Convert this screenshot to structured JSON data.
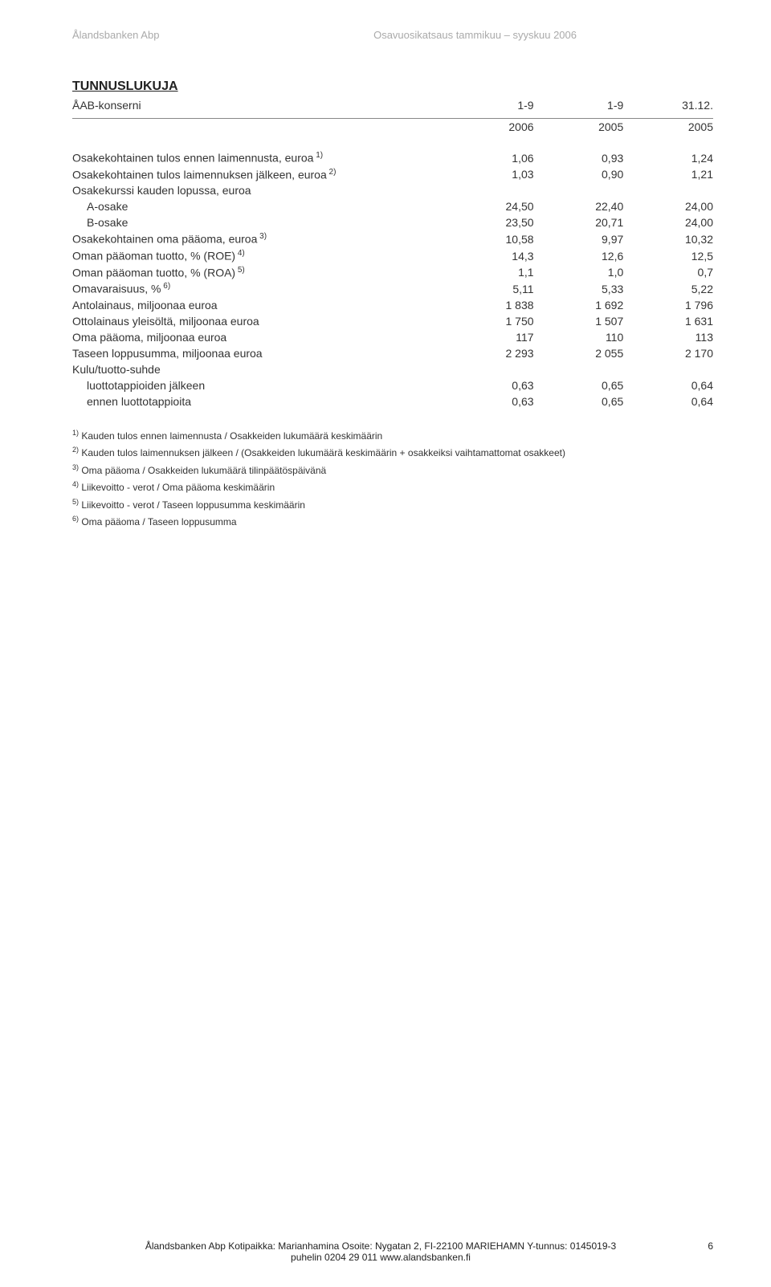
{
  "header": {
    "left": "Ålandsbanken Abp",
    "right": "Osavuosikatsaus tammikuu – syyskuu 2006"
  },
  "title": "TUNNUSLUKUJA",
  "subheader": {
    "label": "ÅAB-konserni",
    "c1": "1-9",
    "c2": "1-9",
    "c3": "31.12."
  },
  "years": {
    "c1": "2006",
    "c2": "2005",
    "c3": "2005"
  },
  "rows": [
    {
      "label": "Osakekohtainen tulos ennen laimennusta, euroa",
      "sup": "1)",
      "c1": "1,06",
      "c2": "0,93",
      "c3": "1,24",
      "indent": false
    },
    {
      "label": "Osakekohtainen tulos laimennuksen jälkeen, euroa",
      "sup": "2)",
      "c1": "1,03",
      "c2": "0,90",
      "c3": "1,21",
      "indent": false
    },
    {
      "label": "Osakekurssi kauden lopussa, euroa",
      "sup": "",
      "c1": "",
      "c2": "",
      "c3": "",
      "indent": false
    },
    {
      "label": "A-osake",
      "sup": "",
      "c1": "24,50",
      "c2": "22,40",
      "c3": "24,00",
      "indent": true
    },
    {
      "label": "B-osake",
      "sup": "",
      "c1": "23,50",
      "c2": "20,71",
      "c3": "24,00",
      "indent": true
    },
    {
      "label": "Osakekohtainen oma pääoma, euroa",
      "sup": "3)",
      "c1": "10,58",
      "c2": "9,97",
      "c3": "10,32",
      "indent": false
    },
    {
      "label": "Oman pääoman tuotto, % (ROE)",
      "sup": "4)",
      "c1": "14,3",
      "c2": "12,6",
      "c3": "12,5",
      "indent": false
    },
    {
      "label": "Oman pääoman tuotto, % (ROA)",
      "sup": "5)",
      "c1": "1,1",
      "c2": "1,0",
      "c3": "0,7",
      "indent": false
    },
    {
      "label": "Omavaraisuus, %",
      "sup": "6)",
      "c1": "5,11",
      "c2": "5,33",
      "c3": "5,22",
      "indent": false
    },
    {
      "label": "Antolainaus, miljoonaa euroa",
      "sup": "",
      "c1": "1 838",
      "c2": "1 692",
      "c3": "1 796",
      "indent": false
    },
    {
      "label": "Ottolainaus yleisöltä, miljoonaa euroa",
      "sup": "",
      "c1": "1 750",
      "c2": "1 507",
      "c3": "1 631",
      "indent": false
    },
    {
      "label": "Oma pääoma, miljoonaa euroa",
      "sup": "",
      "c1": "117",
      "c2": "110",
      "c3": "113",
      "indent": false
    },
    {
      "label": "Taseen loppusumma, miljoonaa euroa",
      "sup": "",
      "c1": "2 293",
      "c2": "2 055",
      "c3": "2 170",
      "indent": false
    },
    {
      "label": "Kulu/tuotto-suhde",
      "sup": "",
      "c1": "",
      "c2": "",
      "c3": "",
      "indent": false
    },
    {
      "label": "luottotappioiden jälkeen",
      "sup": "",
      "c1": "0,63",
      "c2": "0,65",
      "c3": "0,64",
      "indent": true
    },
    {
      "label": "ennen luottotappioita",
      "sup": "",
      "c1": "0,63",
      "c2": "0,65",
      "c3": "0,64",
      "indent": true
    }
  ],
  "footnotes": [
    {
      "mark": "1)",
      "text": " Kauden tulos ennen laimennusta / Osakkeiden lukumäärä keskimäärin"
    },
    {
      "mark": "2)",
      "text": " Kauden tulos laimennuksen jälkeen / (Osakkeiden lukumäärä keskimäärin + osakkeiksi vaihtamattomat osakkeet)"
    },
    {
      "mark": "3)",
      "text": " Oma pääoma / Osakkeiden lukumäärä tilinpäätöspäivänä"
    },
    {
      "mark": "4)",
      "text": " Liikevoitto - verot  / Oma pääoma keskimäärin"
    },
    {
      "mark": "5)",
      "text": " Liikevoitto - verot  / Taseen loppusumma keskimäärin"
    },
    {
      "mark": "6)",
      "text": " Oma pääoma  / Taseen loppusumma"
    }
  ],
  "footer": {
    "line1": "Ålandsbanken Abp  Kotipaikka: Marianhamina  Osoite: Nygatan 2, FI-22100 MARIEHAMN  Y-tunnus: 0145019-3",
    "line2": "puhelin 0204 29 011       www.alandsbanken.fi",
    "page": "6"
  }
}
